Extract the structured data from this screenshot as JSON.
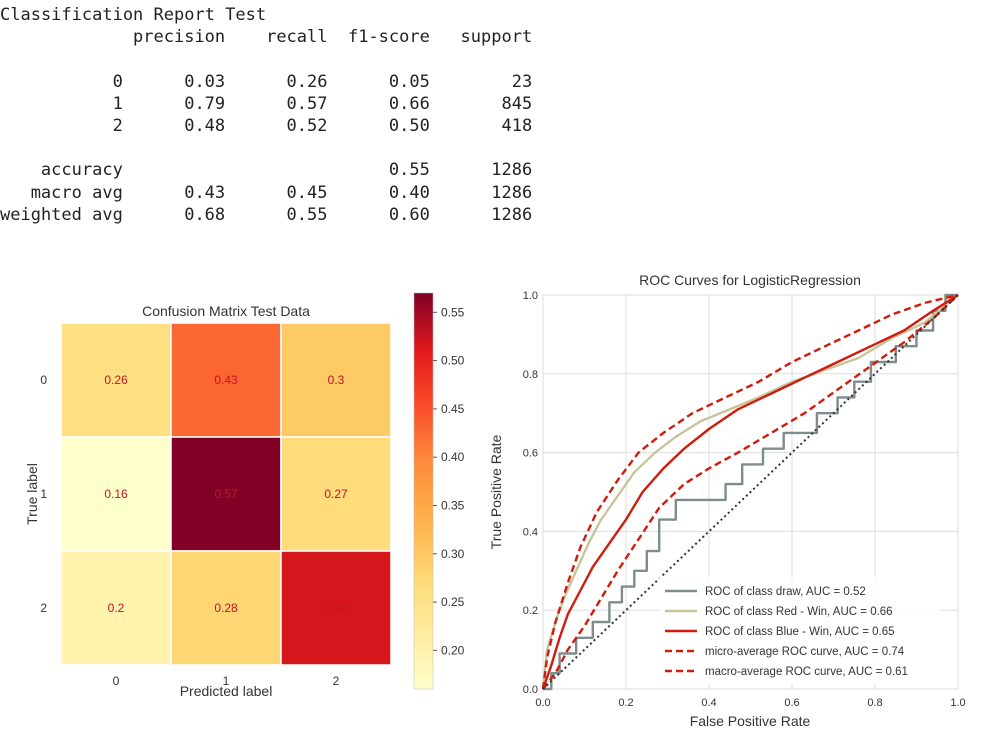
{
  "report": {
    "title": "Classification Report Test",
    "header": [
      "precision",
      "recall",
      "f1-score",
      "support"
    ],
    "rows": [
      {
        "label": "0",
        "values": [
          "0.03",
          "0.26",
          "0.05",
          "23"
        ]
      },
      {
        "label": "1",
        "values": [
          "0.79",
          "0.57",
          "0.66",
          "845"
        ]
      },
      {
        "label": "2",
        "values": [
          "0.48",
          "0.52",
          "0.50",
          "418"
        ]
      }
    ],
    "summary": [
      {
        "label": "accuracy",
        "values": [
          "",
          "",
          "0.55",
          "1286"
        ]
      },
      {
        "label": "macro avg",
        "values": [
          "0.43",
          "0.45",
          "0.40",
          "1286"
        ]
      },
      {
        "label": "weighted avg",
        "values": [
          "0.68",
          "0.55",
          "0.60",
          "1286"
        ]
      }
    ]
  },
  "chart_data": [
    {
      "type": "heatmap",
      "title": "Confusion Matrix Test Data",
      "xlabel": "Predicted label",
      "ylabel": "True label",
      "x_categories": [
        "0",
        "1",
        "2"
      ],
      "y_categories": [
        "0",
        "1",
        "2"
      ],
      "values": [
        [
          0.26,
          0.43,
          0.3
        ],
        [
          0.16,
          0.57,
          0.27
        ],
        [
          0.2,
          0.28,
          0.52
        ]
      ],
      "cell_labels": [
        [
          "0.26",
          "0.43",
          "0.3"
        ],
        [
          "0.16",
          "0.57",
          "0.27"
        ],
        [
          "0.2",
          "0.28",
          "0.52"
        ]
      ],
      "colorbar": {
        "ticks": [
          "0.20",
          "0.25",
          "0.30",
          "0.35",
          "0.40",
          "0.45",
          "0.50",
          "0.55"
        ],
        "range": [
          0.16,
          0.57
        ],
        "colormap": "YlOrRd"
      },
      "cell_text_color": "#c0152a"
    },
    {
      "type": "line",
      "title": "ROC Curves for LogisticRegression",
      "xlabel": "False Positive Rate",
      "ylabel": "True Positive Rate",
      "xlim": [
        0.0,
        1.0
      ],
      "ylim": [
        0.0,
        1.0
      ],
      "x_ticks": [
        "0.0",
        "0.2",
        "0.4",
        "0.6",
        "0.8",
        "1.0"
      ],
      "y_ticks": [
        "0.0",
        "0.2",
        "0.4",
        "0.6",
        "0.8",
        "1.0"
      ],
      "grid": true,
      "legend_position": "lower-right",
      "series": [
        {
          "name": "ROC of class draw, AUC = 0.52",
          "color": "#7f8c8d",
          "style": "solid",
          "step": true,
          "x": [
            0,
            0.02,
            0.02,
            0.04,
            0.04,
            0.08,
            0.08,
            0.12,
            0.12,
            0.16,
            0.16,
            0.19,
            0.19,
            0.22,
            0.22,
            0.25,
            0.25,
            0.28,
            0.28,
            0.32,
            0.32,
            0.44,
            0.44,
            0.48,
            0.48,
            0.53,
            0.53,
            0.58,
            0.58,
            0.62,
            0.62,
            0.66,
            0.66,
            0.71,
            0.71,
            0.75,
            0.75,
            0.79,
            0.79,
            0.85,
            0.85,
            0.9,
            0.9,
            0.94,
            0.94,
            0.97,
            0.97,
            1.0
          ],
          "y": [
            0,
            0,
            0.04,
            0.04,
            0.09,
            0.09,
            0.13,
            0.13,
            0.17,
            0.17,
            0.22,
            0.22,
            0.26,
            0.26,
            0.3,
            0.3,
            0.35,
            0.35,
            0.43,
            0.43,
            0.48,
            0.48,
            0.52,
            0.52,
            0.57,
            0.57,
            0.61,
            0.61,
            0.65,
            0.65,
            0.65,
            0.65,
            0.7,
            0.7,
            0.74,
            0.74,
            0.78,
            0.78,
            0.83,
            0.83,
            0.87,
            0.87,
            0.91,
            0.91,
            0.96,
            0.96,
            1.0,
            1.0
          ]
        },
        {
          "name": "ROC of class Red - Win, AUC = 0.66",
          "color": "#c9c39a",
          "style": "solid",
          "step": false,
          "x": [
            0,
            0.01,
            0.03,
            0.05,
            0.08,
            0.11,
            0.14,
            0.18,
            0.22,
            0.27,
            0.32,
            0.38,
            0.45,
            0.52,
            0.6,
            0.68,
            0.76,
            0.84,
            0.92,
            1.0
          ],
          "y": [
            0,
            0.1,
            0.17,
            0.23,
            0.3,
            0.37,
            0.43,
            0.49,
            0.55,
            0.6,
            0.64,
            0.68,
            0.71,
            0.74,
            0.78,
            0.81,
            0.84,
            0.89,
            0.93,
            1.0
          ]
        },
        {
          "name": "ROC of class Blue - Win, AUC = 0.65",
          "color": "#d01c0c",
          "style": "solid",
          "step": false,
          "x": [
            0,
            0.02,
            0.04,
            0.06,
            0.09,
            0.12,
            0.16,
            0.2,
            0.24,
            0.29,
            0.34,
            0.4,
            0.47,
            0.55,
            0.63,
            0.71,
            0.79,
            0.87,
            0.94,
            1.0
          ],
          "y": [
            0,
            0.06,
            0.13,
            0.19,
            0.25,
            0.31,
            0.37,
            0.43,
            0.5,
            0.56,
            0.61,
            0.66,
            0.71,
            0.75,
            0.79,
            0.83,
            0.87,
            0.91,
            0.96,
            1.0
          ]
        },
        {
          "name": "micro-average ROC curve, AUC = 0.74",
          "color": "#d01c0c",
          "style": "dashed",
          "step": false,
          "x": [
            0,
            0.01,
            0.03,
            0.06,
            0.09,
            0.13,
            0.18,
            0.23,
            0.29,
            0.36,
            0.44,
            0.52,
            0.6,
            0.68,
            0.76,
            0.84,
            0.92,
            1.0
          ],
          "y": [
            0,
            0.08,
            0.17,
            0.27,
            0.36,
            0.45,
            0.53,
            0.6,
            0.65,
            0.7,
            0.74,
            0.78,
            0.83,
            0.87,
            0.91,
            0.95,
            0.98,
            1.0
          ]
        },
        {
          "name": "macro-average ROC curve, AUC = 0.61",
          "color": "#d01c0c",
          "style": "dashed",
          "step": false,
          "x": [
            0,
            0.03,
            0.06,
            0.1,
            0.14,
            0.18,
            0.23,
            0.28,
            0.34,
            0.4,
            0.47,
            0.55,
            0.63,
            0.71,
            0.79,
            0.87,
            0.94,
            1.0
          ],
          "y": [
            0,
            0.04,
            0.1,
            0.16,
            0.23,
            0.3,
            0.38,
            0.46,
            0.52,
            0.56,
            0.6,
            0.65,
            0.7,
            0.76,
            0.82,
            0.88,
            0.94,
            1.0
          ]
        },
        {
          "name": "",
          "color": "#333333",
          "style": "dotted",
          "step": false,
          "x": [
            0,
            1
          ],
          "y": [
            0,
            1
          ]
        }
      ]
    }
  ]
}
